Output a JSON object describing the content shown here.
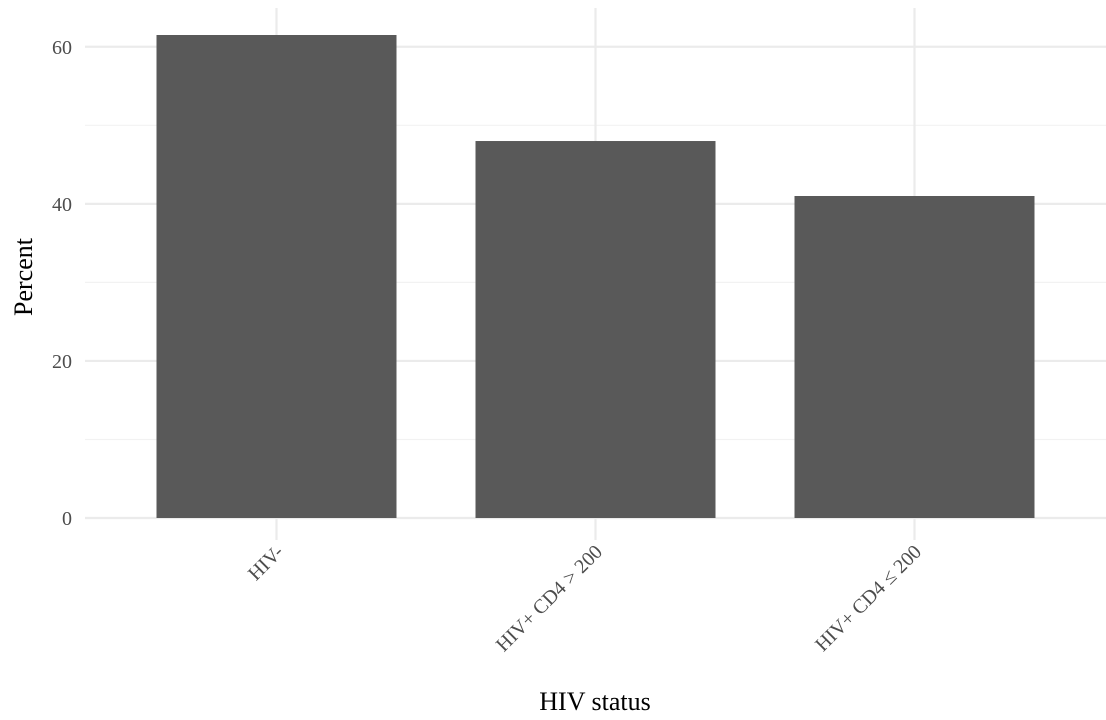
{
  "chart_data": {
    "type": "bar",
    "title": "",
    "xlabel": "HIV status",
    "ylabel": "Percent",
    "categories": [
      "HIV-",
      "HIV+ CD4 > 200",
      "HIV+ CD4 ≤ 200"
    ],
    "values": [
      61.5,
      48.0,
      41.0
    ],
    "ylim": [
      0,
      61.5
    ],
    "yticks": [
      0,
      20,
      40,
      60
    ],
    "grid": true,
    "legend": "none",
    "bar_color": "#595959"
  }
}
